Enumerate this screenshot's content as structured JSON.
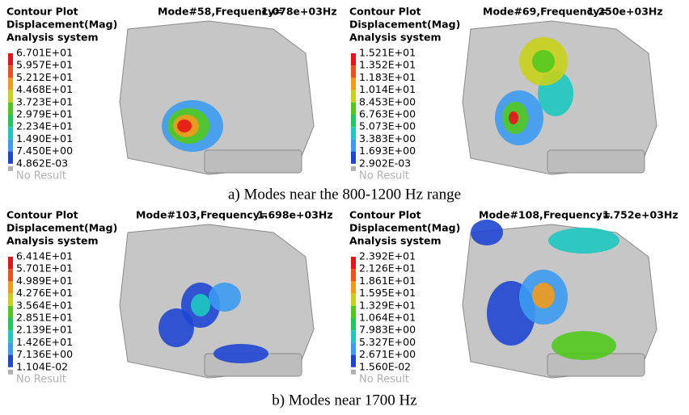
{
  "panels": [
    {
      "header": [
        "Contour Plot",
        "Displacement(Mag)",
        "Analysis system"
      ],
      "mode": "Mode#58,Frequency=",
      "frequency": "1.078e+03Hz",
      "legend": [
        "6.701E+01",
        "5.957E+01",
        "5.212E+01",
        "4.468E+01",
        "3.723E+01",
        "2.979E+01",
        "2.234E+01",
        "1.490E+01",
        "7.450E+00",
        "4.862E-03"
      ],
      "no_result": "No Result"
    },
    {
      "header": [
        "Contour Plot",
        "Displacement(Mag)",
        "Analysis system"
      ],
      "mode": "Mode#69,Frequency=",
      "frequency": "1.250e+03Hz",
      "legend": [
        "1.521E+01",
        "1.352E+01",
        "1.183E+01",
        "1.014E+01",
        "8.453E+00",
        "6.763E+00",
        "5.073E+00",
        "3.383E+00",
        "1.693E+00",
        "2.902E-03"
      ],
      "no_result": "No Result"
    },
    {
      "header": [
        "Contour Plot",
        "Displacement(Mag)",
        "Analysis system"
      ],
      "mode": "Mode#103,Frequency=",
      "frequency": "1.698e+03Hz",
      "legend": [
        "6.414E+01",
        "5.701E+01",
        "4.989E+01",
        "4.276E+01",
        "3.564E+01",
        "2.851E+01",
        "2.139E+01",
        "1.426E+01",
        "7.136E+00",
        "1.104E-02"
      ],
      "no_result": "No Result"
    },
    {
      "header": [
        "Contour Plot",
        "Displacement(Mag)",
        "Analysis system"
      ],
      "mode": "Mode#108,Frequency=",
      "frequency": "1.752e+03Hz",
      "legend": [
        "2.392E+01",
        "2.126E+01",
        "1.861E+01",
        "1.595E+01",
        "1.329E+01",
        "1.064E+01",
        "7.983E+00",
        "5.327E+00",
        "2.671E+00",
        "1.560E-02"
      ],
      "no_result": "No Result"
    }
  ],
  "captions": [
    "a) Modes near the 800-1200 Hz range",
    "b) Modes near 1700 Hz"
  ]
}
